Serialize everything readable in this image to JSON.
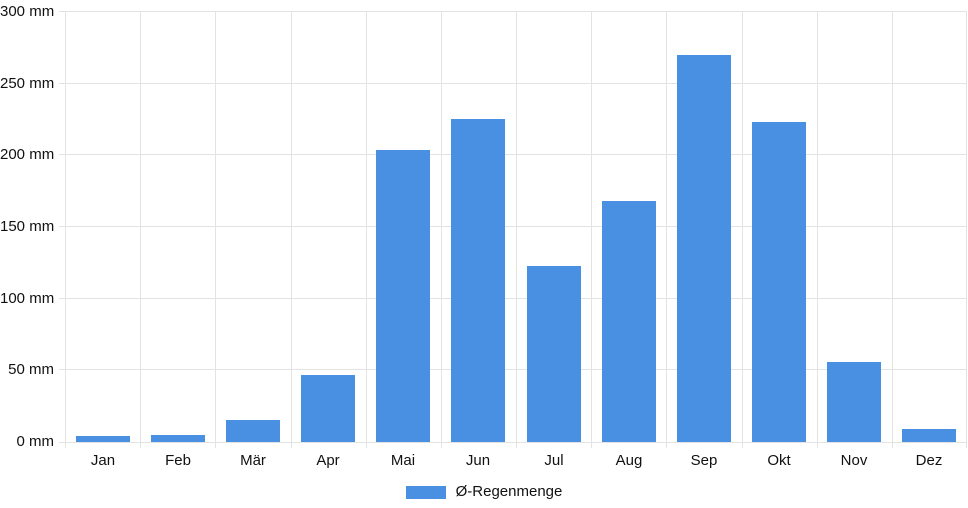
{
  "chart_data": {
    "type": "bar",
    "categories": [
      "Jan",
      "Feb",
      "Mär",
      "Apr",
      "Mai",
      "Jun",
      "Jul",
      "Aug",
      "Sep",
      "Okt",
      "Nov",
      "Dez"
    ],
    "series": [
      {
        "name": "Ø-Regenmenge",
        "values": [
          4,
          5,
          15,
          47,
          204,
          225,
          123,
          168,
          270,
          223,
          56,
          9
        ]
      }
    ],
    "title": "",
    "xlabel": "",
    "ylabel": "",
    "unit": "mm",
    "ylim": [
      0,
      300
    ],
    "y_tick_step": 50,
    "y_tick_labels": [
      "0 mm",
      "50 mm",
      "100 mm",
      "150 mm",
      "200 mm",
      "250 mm",
      "300 mm"
    ],
    "grid": true,
    "legend_position": "bottom"
  },
  "legend": {
    "label": "Ø-Regenmenge"
  },
  "colors": {
    "bar": "#4a90e2",
    "grid": "#e3e3e3",
    "axis_text": "#111111",
    "background": "#ffffff"
  }
}
